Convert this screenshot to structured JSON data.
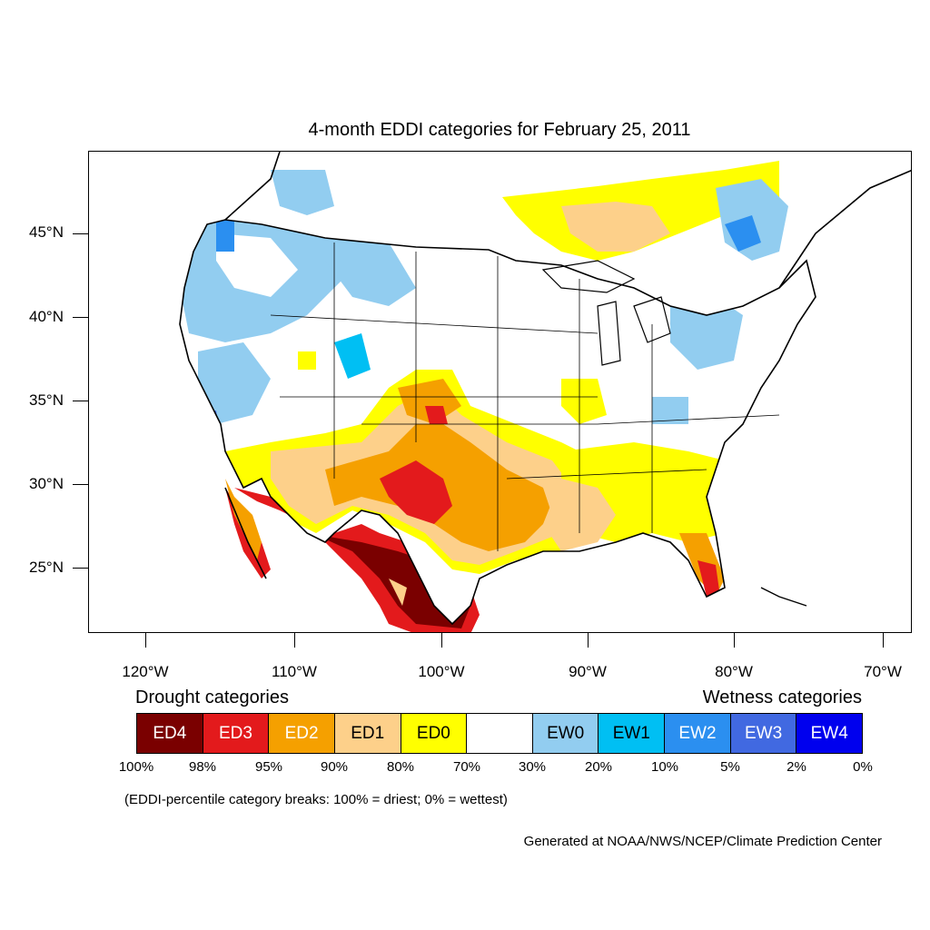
{
  "title": "4-month EDDI categories for February 25, 2011",
  "lat_labels": [
    "45°N",
    "40°N",
    "35°N",
    "30°N",
    "25°N"
  ],
  "lon_labels": [
    "120°W",
    "110°W",
    "100°W",
    "90°W",
    "80°W",
    "70°W"
  ],
  "legend": {
    "drought_heading": "Drought categories",
    "wetness_heading": "Wetness categories",
    "categories": [
      {
        "label": "ED4",
        "color": "#7a0000",
        "text_color": "#ffffff"
      },
      {
        "label": "ED3",
        "color": "#e31a1c",
        "text_color": "#ffffff"
      },
      {
        "label": "ED2",
        "color": "#f5a000",
        "text_color": "#ffffff"
      },
      {
        "label": "ED1",
        "color": "#fdd08a",
        "text_color": "#000000"
      },
      {
        "label": "ED0",
        "color": "#ffff00",
        "text_color": "#000000"
      },
      {
        "label": "",
        "color": "#ffffff",
        "text_color": "#000000"
      },
      {
        "label": "EW0",
        "color": "#92cdf0",
        "text_color": "#000000"
      },
      {
        "label": "EW1",
        "color": "#00bff3",
        "text_color": "#000000"
      },
      {
        "label": "EW2",
        "color": "#2b8ff0",
        "text_color": "#ffffff"
      },
      {
        "label": "EW3",
        "color": "#4169e1",
        "text_color": "#ffffff"
      },
      {
        "label": "EW4",
        "color": "#0000ee",
        "text_color": "#ffffff"
      }
    ],
    "percentiles": [
      "100%",
      "98%",
      "95%",
      "90%",
      "80%",
      "70%",
      "30%",
      "20%",
      "10%",
      "5%",
      "2%",
      "0%"
    ]
  },
  "breaks_note": "(EDDI-percentile category breaks: 100% = driest; 0% = wettest)",
  "credit": "Generated at NOAA/NWS/NCEP/Climate Prediction Center"
}
